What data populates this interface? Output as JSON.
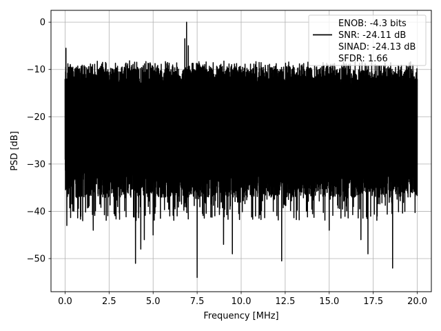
{
  "chart_data": {
    "type": "line",
    "title": "",
    "xlabel": "Frequency [MHz]",
    "ylabel": "PSD [dB]",
    "xlim": [
      -0.8,
      20.8
    ],
    "ylim": [
      -57,
      2.5
    ],
    "xticks": [
      0.0,
      2.5,
      5.0,
      7.5,
      10.0,
      12.5,
      15.0,
      17.5,
      20.0
    ],
    "xtick_labels": [
      "0.0",
      "2.5",
      "5.0",
      "7.5",
      "10.0",
      "12.5",
      "15.0",
      "17.5",
      "20.0"
    ],
    "yticks": [
      0,
      -10,
      -20,
      -30,
      -40,
      -50
    ],
    "ytick_labels": [
      "0",
      "−10",
      "−20",
      "−30",
      "−40",
      "−50"
    ],
    "grid": true,
    "legend_position": "top-right",
    "line_color": "#000000",
    "legend": [
      {
        "text": "ENOB: -4.3 bits",
        "has_line": false
      },
      {
        "text": "SNR: -24.11 dB",
        "has_line": true
      },
      {
        "text": "SINAD: -24.13 dB",
        "has_line": false
      },
      {
        "text": "SFDR: 1.66",
        "has_line": false
      }
    ],
    "series": [
      {
        "noise_floor": {
          "x_start": 0.0,
          "x_end": 20.0,
          "typical_peak_db": -10,
          "typical_low_db": -33,
          "band_top_db": -8,
          "band_bottom_db": -36
        },
        "features": [
          {
            "x": 0.05,
            "y": -5.5
          },
          {
            "x": 0.1,
            "y": -43
          },
          {
            "x": 0.5,
            "y": -40
          },
          {
            "x": 1.0,
            "y": -42
          },
          {
            "x": 1.6,
            "y": -44
          },
          {
            "x": 4.0,
            "y": -51
          },
          {
            "x": 4.3,
            "y": -48
          },
          {
            "x": 4.5,
            "y": -46
          },
          {
            "x": 5.0,
            "y": -45
          },
          {
            "x": 6.8,
            "y": -3.5
          },
          {
            "x": 6.9,
            "y": 0
          },
          {
            "x": 7.0,
            "y": -5
          },
          {
            "x": 7.5,
            "y": -54
          },
          {
            "x": 9.0,
            "y": -47
          },
          {
            "x": 9.5,
            "y": -49
          },
          {
            "x": 12.3,
            "y": -50.5
          },
          {
            "x": 15.0,
            "y": -44
          },
          {
            "x": 16.8,
            "y": -46
          },
          {
            "x": 17.2,
            "y": -49
          },
          {
            "x": 18.6,
            "y": -52
          },
          {
            "x": 20.0,
            "y": -12
          }
        ]
      }
    ]
  }
}
